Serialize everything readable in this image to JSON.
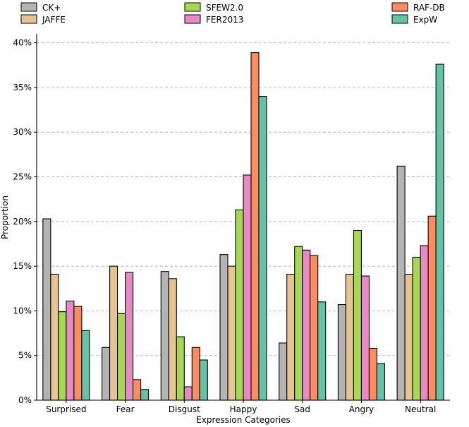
{
  "chart_data": {
    "type": "bar",
    "xlabel": "Expression Categories",
    "ylabel": "Proportion",
    "ylim": [
      0,
      41
    ],
    "yticks": [
      0,
      5,
      10,
      15,
      20,
      25,
      30,
      35,
      40
    ],
    "ytick_labels": [
      "0%",
      "5%",
      "10%",
      "15%",
      "20%",
      "25%",
      "30%",
      "35%",
      "40%"
    ],
    "grid": "horizontal-dashed",
    "legend_placement": "top",
    "categories": [
      "Surprised",
      "Fear",
      "Disgust",
      "Happy",
      "Sad",
      "Angry",
      "Neutral"
    ],
    "series": [
      {
        "name": "CK+",
        "color": "#b3b3b3",
        "values": [
          20.3,
          5.9,
          14.4,
          16.3,
          6.4,
          10.7,
          26.2
        ]
      },
      {
        "name": "JAFFE",
        "color": "#e5c494",
        "values": [
          14.1,
          15.0,
          13.6,
          15.0,
          14.1,
          14.1,
          14.1
        ]
      },
      {
        "name": "SFEW2.0",
        "color": "#a6d854",
        "values": [
          9.9,
          9.7,
          7.1,
          21.3,
          17.2,
          19.0,
          16.0
        ]
      },
      {
        "name": "FER2013",
        "color": "#e78ac3",
        "values": [
          11.1,
          14.3,
          1.5,
          25.2,
          16.8,
          13.9,
          17.3
        ]
      },
      {
        "name": "RAF-DB",
        "color": "#fc8d62",
        "values": [
          10.5,
          2.3,
          5.9,
          38.9,
          16.2,
          5.8,
          20.6
        ]
      },
      {
        "name": "ExpW",
        "color": "#66c2a5",
        "values": [
          7.8,
          1.2,
          4.5,
          34.0,
          11.0,
          4.1,
          37.6
        ]
      }
    ]
  }
}
